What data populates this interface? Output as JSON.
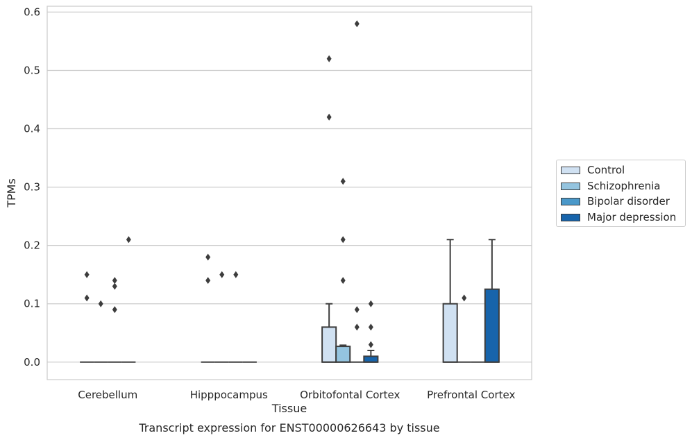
{
  "chart_data": {
    "type": "box",
    "title": "Transcript expression for ENST00000626643 by tissue",
    "xlabel": "Tissue",
    "ylabel": "TPMs",
    "categories": [
      "Cerebellum",
      "Hipppocampus",
      "Orbitofontal Cortex",
      "Prefrontal Cortex"
    ],
    "ylim": [
      -0.03,
      0.61
    ],
    "yticks": [
      "0.0",
      "0.1",
      "0.2",
      "0.3",
      "0.4",
      "0.5",
      "0.6"
    ],
    "grid": "horizontal",
    "legend_position": "right",
    "series": [
      {
        "name": "Control",
        "color": "#d0e1f2",
        "boxes": [
          {
            "q1": 0,
            "median": 0,
            "q3": 0,
            "whisker_low": 0,
            "whisker_high": 0,
            "outliers": [
              0.15,
              0.11
            ]
          },
          {
            "q1": 0,
            "median": 0,
            "q3": 0,
            "whisker_low": 0,
            "whisker_high": 0,
            "outliers": [
              0.18,
              0.14
            ]
          },
          {
            "q1": 0,
            "median": 0,
            "q3": 0.06,
            "whisker_low": 0,
            "whisker_high": 0.1,
            "outliers": [
              0.52,
              0.42
            ]
          },
          {
            "q1": 0,
            "median": 0,
            "q3": 0.1,
            "whisker_low": 0,
            "whisker_high": 0.21,
            "outliers": []
          }
        ]
      },
      {
        "name": "Schizophrenia",
        "color": "#94c4df",
        "boxes": [
          {
            "q1": 0,
            "median": 0,
            "q3": 0,
            "whisker_low": 0,
            "whisker_high": 0,
            "outliers": [
              0.1
            ]
          },
          {
            "q1": 0,
            "median": 0,
            "q3": 0,
            "whisker_low": 0,
            "whisker_high": 0,
            "outliers": [
              0.15
            ]
          },
          {
            "q1": 0,
            "median": 0,
            "q3": 0.027,
            "whisker_low": 0,
            "whisker_high": 0.029,
            "outliers": [
              0.31,
              0.21,
              0.14
            ]
          },
          {
            "q1": 0,
            "median": 0,
            "q3": 0,
            "whisker_low": 0,
            "whisker_high": 0,
            "outliers": [
              0.11
            ]
          }
        ]
      },
      {
        "name": "Bipolar disorder",
        "color": "#4a98c9",
        "boxes": [
          {
            "q1": 0,
            "median": 0,
            "q3": 0,
            "whisker_low": 0,
            "whisker_high": 0,
            "outliers": [
              0.14,
              0.13,
              0.09
            ]
          },
          {
            "q1": 0,
            "median": 0,
            "q3": 0,
            "whisker_low": 0,
            "whisker_high": 0,
            "outliers": [
              0.15
            ]
          },
          {
            "q1": 0,
            "median": 0,
            "q3": 0,
            "whisker_low": 0,
            "whisker_high": 0,
            "outliers": [
              0.58,
              0.09,
              0.06
            ]
          },
          {
            "q1": 0,
            "median": 0,
            "q3": 0,
            "whisker_low": 0,
            "whisker_high": 0,
            "outliers": []
          }
        ]
      },
      {
        "name": "Major depression",
        "color": "#1764ab",
        "boxes": [
          {
            "q1": 0,
            "median": 0,
            "q3": 0,
            "whisker_low": 0,
            "whisker_high": 0,
            "outliers": [
              0.21
            ]
          },
          {
            "q1": 0,
            "median": 0,
            "q3": 0,
            "whisker_low": 0,
            "whisker_high": 0,
            "outliers": []
          },
          {
            "q1": 0,
            "median": 0,
            "q3": 0.01,
            "whisker_low": 0,
            "whisker_high": 0.02,
            "outliers": [
              0.1,
              0.06,
              0.03
            ]
          },
          {
            "q1": 0,
            "median": 0,
            "q3": 0.125,
            "whisker_low": 0,
            "whisker_high": 0.21,
            "outliers": []
          }
        ]
      }
    ]
  }
}
